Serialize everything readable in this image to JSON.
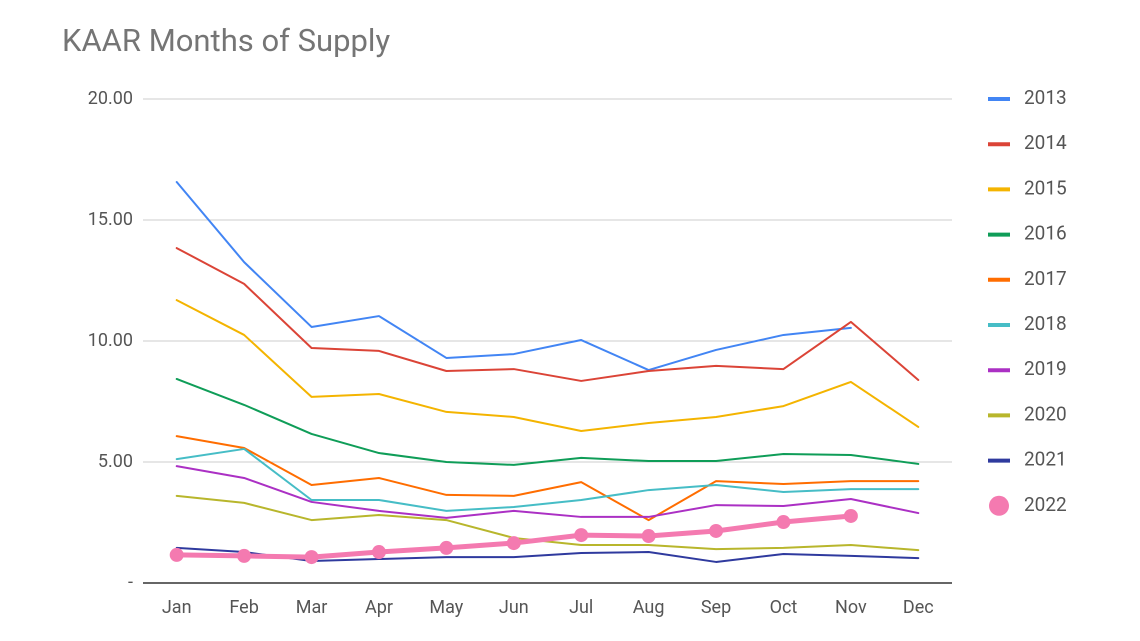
{
  "chart_data": {
    "type": "line",
    "title": "KAAR Months of Supply",
    "categories": [
      "Jan",
      "Feb",
      "Mar",
      "Apr",
      "May",
      "Jun",
      "Jul",
      "Aug",
      "Sep",
      "Oct",
      "Nov",
      "Dec"
    ],
    "ylim": [
      0,
      20
    ],
    "yticks": [
      {
        "value": 0,
        "label": "-"
      },
      {
        "value": 5,
        "label": "5.00"
      },
      {
        "value": 10,
        "label": "10.00"
      },
      {
        "value": 15,
        "label": "15.00"
      },
      {
        "value": 20,
        "label": "20.00"
      }
    ],
    "grid": true,
    "legend": "right",
    "series": [
      {
        "name": "2013",
        "color": "#4285f4",
        "width": 2,
        "markers": false,
        "values": [
          16.57,
          13.26,
          10.58,
          11.03,
          9.3,
          9.46,
          10.04,
          8.8,
          9.63,
          10.25,
          10.54,
          null
        ]
      },
      {
        "name": "2014",
        "color": "#db4437",
        "width": 2,
        "markers": false,
        "values": [
          13.84,
          12.36,
          9.71,
          9.59,
          8.76,
          8.84,
          8.35,
          8.76,
          8.97,
          8.84,
          10.79,
          8.39
        ]
      },
      {
        "name": "2015",
        "color": "#f4b400",
        "width": 2,
        "markers": false,
        "values": [
          11.69,
          10.25,
          7.69,
          7.81,
          7.07,
          6.86,
          6.28,
          6.61,
          6.86,
          7.31,
          8.31,
          6.45
        ]
      },
      {
        "name": "2016",
        "color": "#0f9d58",
        "width": 2,
        "markers": false,
        "values": [
          8.43,
          7.36,
          6.16,
          5.37,
          5.0,
          4.88,
          5.17,
          5.04,
          5.04,
          5.33,
          5.29,
          4.92
        ]
      },
      {
        "name": "2017",
        "color": "#ff6d00",
        "width": 2,
        "markers": false,
        "values": [
          6.07,
          5.58,
          4.05,
          4.34,
          3.64,
          3.6,
          4.17,
          2.6,
          4.21,
          4.09,
          4.21,
          4.21
        ]
      },
      {
        "name": "2018",
        "color": "#46bdc6",
        "width": 2,
        "markers": false,
        "values": [
          5.12,
          5.54,
          3.43,
          3.43,
          2.98,
          3.14,
          3.43,
          3.84,
          4.05,
          3.76,
          3.88,
          3.88
        ]
      },
      {
        "name": "2019",
        "color": "#ab30c4",
        "width": 2,
        "markers": false,
        "values": [
          4.83,
          4.34,
          3.35,
          2.98,
          2.69,
          2.98,
          2.73,
          2.73,
          3.22,
          3.18,
          3.47,
          2.89
        ]
      },
      {
        "name": "2020",
        "color": "#b8b62c",
        "width": 2,
        "markers": false,
        "values": [
          3.6,
          3.31,
          2.6,
          2.81,
          2.6,
          1.86,
          1.57,
          1.57,
          1.4,
          1.45,
          1.57,
          1.36
        ]
      },
      {
        "name": "2021",
        "color": "#2f3a9e",
        "width": 2,
        "markers": false,
        "values": [
          1.45,
          1.28,
          0.91,
          0.99,
          1.07,
          1.07,
          1.24,
          1.28,
          0.87,
          1.2,
          1.12,
          1.03
        ]
      },
      {
        "name": "2022",
        "color": "#f47ab0",
        "width": 5,
        "markers": true,
        "values": [
          1.16,
          1.12,
          1.07,
          1.28,
          1.45,
          1.65,
          1.98,
          1.94,
          2.15,
          2.52,
          2.77,
          null
        ]
      }
    ]
  }
}
